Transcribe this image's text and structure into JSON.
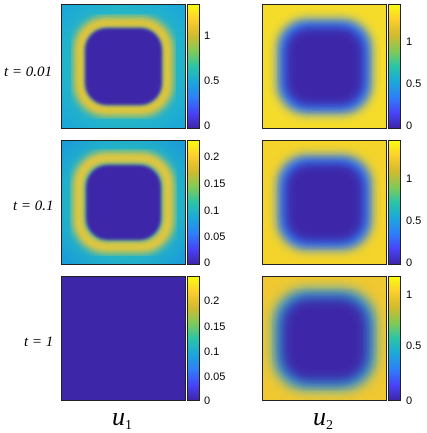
{
  "rows": [
    {
      "label": "t = 0.01",
      "panels": [
        {
          "name": "u1",
          "pattern": "ring-on-field",
          "cbar_ticks": [
            "0",
            "0.5",
            "1"
          ],
          "cbar_max": 1.3
        },
        {
          "name": "u2",
          "pattern": "hole-on-high",
          "cbar_ticks": [
            "0",
            "0.5",
            "1"
          ],
          "cbar_max": 1.35
        }
      ]
    },
    {
      "label": "t = 0.1",
      "panels": [
        {
          "name": "u1",
          "pattern": "ring-on-field",
          "cbar_ticks": [
            "0",
            "0.05",
            "0.1",
            "0.15",
            "0.2"
          ],
          "cbar_max": 0.25
        },
        {
          "name": "u2",
          "pattern": "hole-on-high",
          "cbar_ticks": [
            "0",
            "0.5",
            "1"
          ],
          "cbar_max": 1.3
        }
      ]
    },
    {
      "label": "t = 1",
      "panels": [
        {
          "name": "u1",
          "pattern": "uniform-low",
          "cbar_ticks": [
            "0",
            "0.05",
            "0.1",
            "0.15",
            "0.2"
          ],
          "cbar_max": 0.25
        },
        {
          "name": "u2",
          "pattern": "hole-on-high-soft",
          "cbar_ticks": [
            "0",
            "0.5",
            "1"
          ],
          "cbar_max": 1.1
        }
      ]
    }
  ],
  "columns": [
    {
      "label_main": "u",
      "label_sub": "1"
    },
    {
      "label_main": "u",
      "label_sub": "2"
    }
  ],
  "colors": {
    "low": "#3e26a8",
    "mid": "#2bc4a6",
    "high": "#f9fb0e",
    "border": "#222222"
  }
}
